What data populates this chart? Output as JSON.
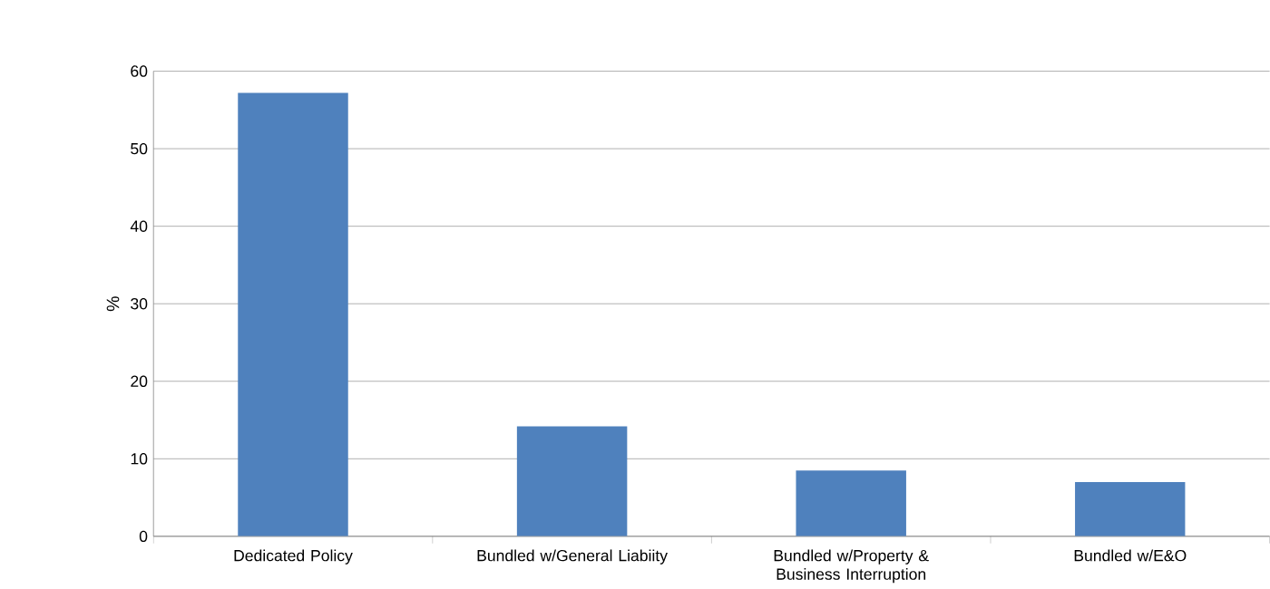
{
  "chart_data": {
    "type": "bar",
    "ylabel": "%",
    "categories": [
      "Dedicated Policy",
      "Bundled w/General Liabiity",
      "Bundled w/Property & Business Interruption",
      "Bundled w/E&O"
    ],
    "values": [
      57.2,
      14.2,
      8.5,
      7.0
    ],
    "color": "#4f81bd",
    "ylim": [
      0,
      60
    ],
    "yticks": [
      0,
      10,
      20,
      30,
      40,
      50,
      60
    ],
    "grid": "y"
  }
}
